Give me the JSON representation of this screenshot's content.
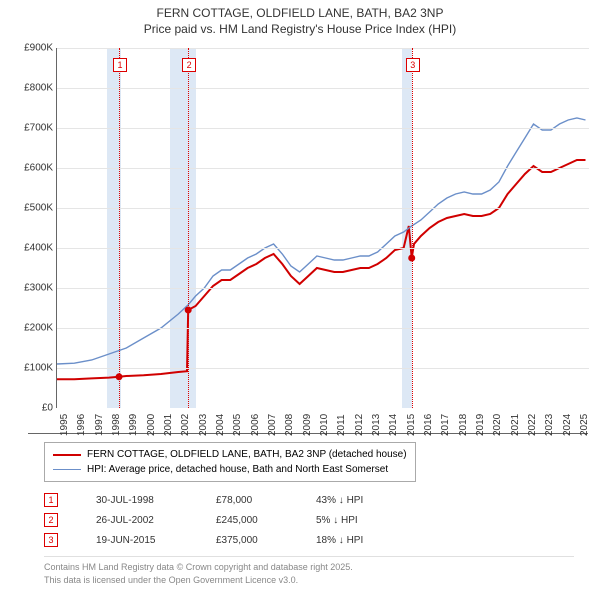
{
  "title": {
    "line1": "FERN COTTAGE, OLDFIELD LANE, BATH, BA2 3NP",
    "line2": "Price paid vs. HM Land Registry's House Price Index (HPI)",
    "fontsize": 12,
    "color": "#333333"
  },
  "chart": {
    "type": "line",
    "background_color": "#ffffff",
    "grid_color": "#e5e5e5",
    "axis_color": "#666666",
    "ylim": [
      0,
      900000
    ],
    "ytick_step": 100000,
    "yticks": [
      "£0",
      "£100K",
      "£200K",
      "£300K",
      "£400K",
      "£500K",
      "£600K",
      "£700K",
      "£800K",
      "£900K"
    ],
    "xlim": [
      1995,
      2025.7
    ],
    "xticks": [
      1995,
      1996,
      1997,
      1998,
      1999,
      2000,
      2001,
      2002,
      2003,
      2004,
      2005,
      2006,
      2007,
      2008,
      2009,
      2010,
      2011,
      2012,
      2013,
      2014,
      2015,
      2016,
      2017,
      2018,
      2019,
      2020,
      2021,
      2022,
      2023,
      2024,
      2025
    ],
    "label_fontsize": 10,
    "highlight_zone_color": "#dde8f5",
    "highlight_zones": [
      [
        1997.9,
        1998.7
      ],
      [
        2001.5,
        2003.0
      ],
      [
        2014.9,
        2015.5
      ]
    ],
    "event_line_color": "#d00000",
    "event_line_style": "dotted",
    "events": [
      {
        "n": "1",
        "x": 1998.58
      },
      {
        "n": "2",
        "x": 2002.57
      },
      {
        "n": "3",
        "x": 2015.47
      }
    ],
    "marker_points": [
      {
        "x": 1998.58,
        "y": 78000
      },
      {
        "x": 2002.57,
        "y": 245000
      },
      {
        "x": 2015.47,
        "y": 375000
      }
    ],
    "marker_color": "#d00000",
    "marker_radius": 3.5,
    "series": [
      {
        "name": "FERN COTTAGE, OLDFIELD LANE, BATH, BA2 3NP (detached house)",
        "color": "#d00000",
        "width": 2,
        "data": [
          [
            1995.0,
            72000
          ],
          [
            1996.0,
            72000
          ],
          [
            1997.0,
            74000
          ],
          [
            1998.0,
            76000
          ],
          [
            1998.58,
            78000
          ],
          [
            1999.0,
            80000
          ],
          [
            2000.0,
            82000
          ],
          [
            2001.0,
            85000
          ],
          [
            2002.0,
            90000
          ],
          [
            2002.5,
            92000
          ],
          [
            2002.57,
            245000
          ],
          [
            2003.0,
            255000
          ],
          [
            2003.5,
            280000
          ],
          [
            2004.0,
            305000
          ],
          [
            2004.5,
            320000
          ],
          [
            2005.0,
            320000
          ],
          [
            2005.5,
            335000
          ],
          [
            2006.0,
            350000
          ],
          [
            2006.5,
            360000
          ],
          [
            2007.0,
            375000
          ],
          [
            2007.5,
            385000
          ],
          [
            2008.0,
            360000
          ],
          [
            2008.5,
            330000
          ],
          [
            2009.0,
            310000
          ],
          [
            2009.5,
            330000
          ],
          [
            2010.0,
            350000
          ],
          [
            2010.5,
            345000
          ],
          [
            2011.0,
            340000
          ],
          [
            2011.5,
            340000
          ],
          [
            2012.0,
            345000
          ],
          [
            2012.5,
            350000
          ],
          [
            2013.0,
            350000
          ],
          [
            2013.5,
            360000
          ],
          [
            2014.0,
            375000
          ],
          [
            2014.5,
            395000
          ],
          [
            2015.0,
            400000
          ],
          [
            2015.3,
            455000
          ],
          [
            2015.47,
            375000
          ],
          [
            2015.6,
            410000
          ],
          [
            2016.0,
            430000
          ],
          [
            2016.5,
            450000
          ],
          [
            2017.0,
            465000
          ],
          [
            2017.5,
            475000
          ],
          [
            2018.0,
            480000
          ],
          [
            2018.5,
            485000
          ],
          [
            2019.0,
            480000
          ],
          [
            2019.5,
            480000
          ],
          [
            2020.0,
            485000
          ],
          [
            2020.5,
            500000
          ],
          [
            2021.0,
            535000
          ],
          [
            2021.5,
            560000
          ],
          [
            2022.0,
            585000
          ],
          [
            2022.5,
            605000
          ],
          [
            2023.0,
            590000
          ],
          [
            2023.5,
            590000
          ],
          [
            2024.0,
            600000
          ],
          [
            2024.5,
            610000
          ],
          [
            2025.0,
            620000
          ],
          [
            2025.5,
            620000
          ]
        ]
      },
      {
        "name": "HPI: Average price, detached house, Bath and North East Somerset",
        "color": "#6b8fc9",
        "width": 1.4,
        "data": [
          [
            1995.0,
            110000
          ],
          [
            1996.0,
            112000
          ],
          [
            1997.0,
            120000
          ],
          [
            1998.0,
            135000
          ],
          [
            1999.0,
            150000
          ],
          [
            2000.0,
            175000
          ],
          [
            2001.0,
            200000
          ],
          [
            2002.0,
            235000
          ],
          [
            2002.57,
            258000
          ],
          [
            2003.0,
            280000
          ],
          [
            2003.5,
            300000
          ],
          [
            2004.0,
            330000
          ],
          [
            2004.5,
            345000
          ],
          [
            2005.0,
            345000
          ],
          [
            2005.5,
            360000
          ],
          [
            2006.0,
            375000
          ],
          [
            2006.5,
            385000
          ],
          [
            2007.0,
            400000
          ],
          [
            2007.5,
            410000
          ],
          [
            2008.0,
            385000
          ],
          [
            2008.5,
            355000
          ],
          [
            2009.0,
            340000
          ],
          [
            2009.5,
            360000
          ],
          [
            2010.0,
            380000
          ],
          [
            2010.5,
            375000
          ],
          [
            2011.0,
            370000
          ],
          [
            2011.5,
            370000
          ],
          [
            2012.0,
            375000
          ],
          [
            2012.5,
            380000
          ],
          [
            2013.0,
            380000
          ],
          [
            2013.5,
            390000
          ],
          [
            2014.0,
            410000
          ],
          [
            2014.5,
            430000
          ],
          [
            2015.0,
            440000
          ],
          [
            2015.47,
            455000
          ],
          [
            2016.0,
            470000
          ],
          [
            2016.5,
            490000
          ],
          [
            2017.0,
            510000
          ],
          [
            2017.5,
            525000
          ],
          [
            2018.0,
            535000
          ],
          [
            2018.5,
            540000
          ],
          [
            2019.0,
            535000
          ],
          [
            2019.5,
            535000
          ],
          [
            2020.0,
            545000
          ],
          [
            2020.5,
            565000
          ],
          [
            2021.0,
            605000
          ],
          [
            2021.5,
            640000
          ],
          [
            2022.0,
            675000
          ],
          [
            2022.5,
            710000
          ],
          [
            2023.0,
            695000
          ],
          [
            2023.5,
            695000
          ],
          [
            2024.0,
            710000
          ],
          [
            2024.5,
            720000
          ],
          [
            2025.0,
            725000
          ],
          [
            2025.5,
            720000
          ]
        ]
      }
    ]
  },
  "legend": {
    "border_color": "#aaaaaa",
    "fontsize": 10,
    "items": [
      {
        "color": "#d00000",
        "width": 2,
        "label": "FERN COTTAGE, OLDFIELD LANE, BATH, BA2 3NP (detached house)"
      },
      {
        "color": "#6b8fc9",
        "width": 1.4,
        "label": "HPI: Average price, detached house, Bath and North East Somerset"
      }
    ]
  },
  "sales": [
    {
      "n": "1",
      "date": "30-JUL-1998",
      "price": "£78,000",
      "delta": "43% ↓ HPI"
    },
    {
      "n": "2",
      "date": "26-JUL-2002",
      "price": "£245,000",
      "delta": "5% ↓ HPI"
    },
    {
      "n": "3",
      "date": "19-JUN-2015",
      "price": "£375,000",
      "delta": "18% ↓ HPI"
    }
  ],
  "footer": {
    "line1": "Contains HM Land Registry data © Crown copyright and database right 2025.",
    "line2": "This data is licensed under the Open Government Licence v3.0.",
    "color": "#888888",
    "fontsize": 9
  }
}
